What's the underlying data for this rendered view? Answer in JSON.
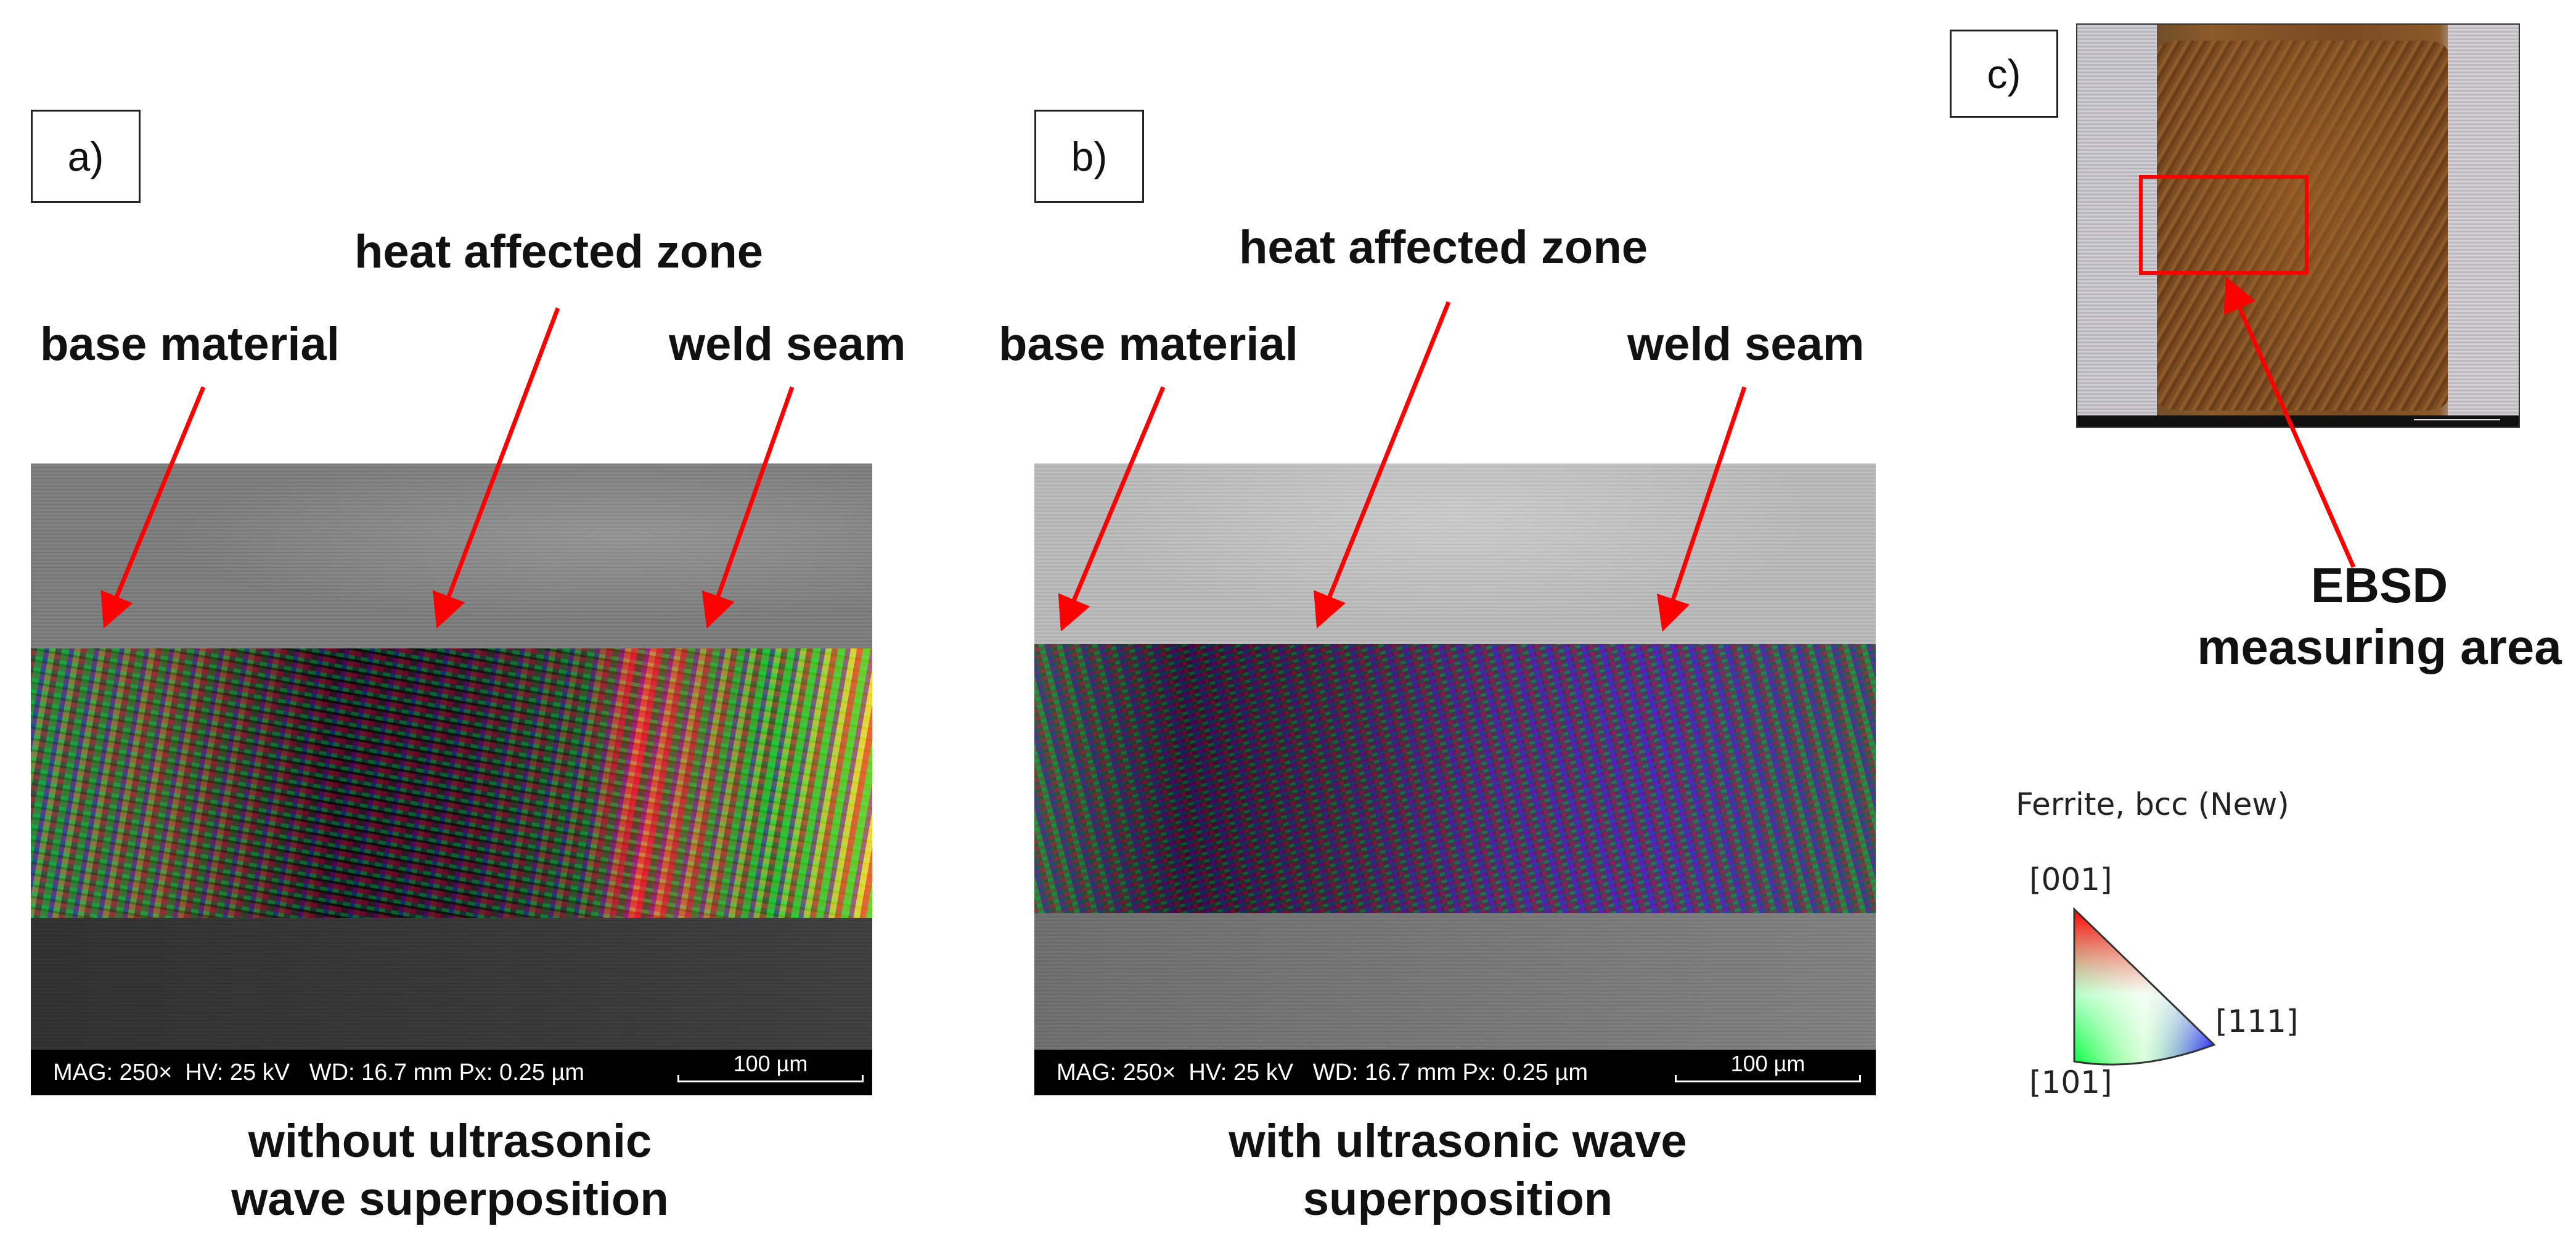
{
  "panels": {
    "a": {
      "label": "a)",
      "annotations": {
        "base": "base material",
        "haz": "heat affected zone",
        "weld": "weld seam"
      },
      "infobar": {
        "params": "MAG: 250×  HV: 25 kV   WD: 16.7 mm Px: 0.25 µm",
        "scale_label": "100 µm"
      },
      "caption": [
        "without ultrasonic",
        "wave superposition"
      ]
    },
    "b": {
      "label": "b)",
      "annotations": {
        "base": "base material",
        "haz": "heat affected zone",
        "weld": "weld seam"
      },
      "infobar": {
        "params": "MAG: 250×  HV: 25 kV   WD: 16.7 mm Px: 0.25 µm",
        "scale_label": "100 µm"
      },
      "caption": [
        "with ultrasonic wave",
        "superposition"
      ]
    },
    "c": {
      "label": "c)",
      "annotation": [
        "EBSD",
        "measuring area"
      ]
    }
  },
  "legend": {
    "title": "Ferrite, bcc (New)",
    "corner_top": "[001]",
    "corner_right": "[111]",
    "corner_bottom": "[101]"
  },
  "colors": {
    "arrow": "#ff0000",
    "frame": "#ff0000"
  }
}
